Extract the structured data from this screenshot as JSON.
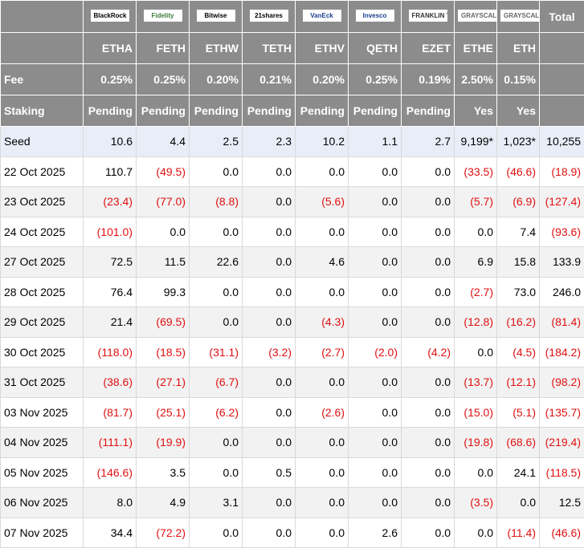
{
  "header": {
    "logos": [
      "BlackRock",
      "Fidelity",
      "Bitwise",
      "21shares",
      "VanEck",
      "Invesco",
      "FRANKLIN TEMPLETON",
      "GRAYSCALE",
      "GRAYSCALE"
    ],
    "total": "Total",
    "tickers": [
      "ETHA",
      "FETH",
      "ETHW",
      "TETH",
      "ETHV",
      "QETH",
      "EZET",
      "ETHE",
      "ETH"
    ]
  },
  "fee": {
    "label": "Fee",
    "values": [
      "0.25%",
      "0.25%",
      "0.20%",
      "0.21%",
      "0.20%",
      "0.25%",
      "0.19%",
      "2.50%",
      "0.15%"
    ]
  },
  "staking": {
    "label": "Staking",
    "values": [
      "Pending",
      "Pending",
      "Pending",
      "Pending",
      "Pending",
      "Pending",
      "Pending",
      "Yes",
      "Yes"
    ]
  },
  "rows": [
    {
      "date": "Seed",
      "values": [
        "10.6",
        "4.4",
        "2.5",
        "2.3",
        "10.2",
        "1.1",
        "2.7",
        "9,199*",
        "1,023*",
        "10,255"
      ]
    },
    {
      "date": "22 Oct 2025",
      "values": [
        "110.7",
        "(49.5)",
        "0.0",
        "0.0",
        "0.0",
        "0.0",
        "0.0",
        "(33.5)",
        "(46.6)",
        "(18.9)"
      ]
    },
    {
      "date": "23 Oct 2025",
      "values": [
        "(23.4)",
        "(77.0)",
        "(8.8)",
        "0.0",
        "(5.6)",
        "0.0",
        "0.0",
        "(5.7)",
        "(6.9)",
        "(127.4)"
      ]
    },
    {
      "date": "24 Oct 2025",
      "values": [
        "(101.0)",
        "0.0",
        "0.0",
        "0.0",
        "0.0",
        "0.0",
        "0.0",
        "0.0",
        "7.4",
        "(93.6)"
      ]
    },
    {
      "date": "27 Oct 2025",
      "values": [
        "72.5",
        "11.5",
        "22.6",
        "0.0",
        "4.6",
        "0.0",
        "0.0",
        "6.9",
        "15.8",
        "133.9"
      ]
    },
    {
      "date": "28 Oct 2025",
      "values": [
        "76.4",
        "99.3",
        "0.0",
        "0.0",
        "0.0",
        "0.0",
        "0.0",
        "(2.7)",
        "73.0",
        "246.0"
      ]
    },
    {
      "date": "29 Oct 2025",
      "values": [
        "21.4",
        "(69.5)",
        "0.0",
        "0.0",
        "(4.3)",
        "0.0",
        "0.0",
        "(12.8)",
        "(16.2)",
        "(81.4)"
      ]
    },
    {
      "date": "30 Oct 2025",
      "values": [
        "(118.0)",
        "(18.5)",
        "(31.1)",
        "(3.2)",
        "(2.7)",
        "(2.0)",
        "(4.2)",
        "0.0",
        "(4.5)",
        "(184.2)"
      ]
    },
    {
      "date": "31 Oct 2025",
      "values": [
        "(38.6)",
        "(27.1)",
        "(6.7)",
        "0.0",
        "0.0",
        "0.0",
        "0.0",
        "(13.7)",
        "(12.1)",
        "(98.2)"
      ]
    },
    {
      "date": "03 Nov 2025",
      "values": [
        "(81.7)",
        "(25.1)",
        "(6.2)",
        "0.0",
        "(2.6)",
        "0.0",
        "0.0",
        "(15.0)",
        "(5.1)",
        "(135.7)"
      ]
    },
    {
      "date": "04 Nov 2025",
      "values": [
        "(111.1)",
        "(19.9)",
        "0.0",
        "0.0",
        "0.0",
        "0.0",
        "0.0",
        "(19.8)",
        "(68.6)",
        "(219.4)"
      ]
    },
    {
      "date": "05 Nov 2025",
      "values": [
        "(146.6)",
        "3.5",
        "0.0",
        "0.5",
        "0.0",
        "0.0",
        "0.0",
        "0.0",
        "24.1",
        "(118.5)"
      ]
    },
    {
      "date": "06 Nov 2025",
      "values": [
        "8.0",
        "4.9",
        "3.1",
        "0.0",
        "0.0",
        "0.0",
        "0.0",
        "(3.5)",
        "0.0",
        "12.5"
      ]
    },
    {
      "date": "07 Nov 2025",
      "values": [
        "34.4",
        "(72.2)",
        "0.0",
        "0.0",
        "0.0",
        "2.6",
        "0.0",
        "0.0",
        "(11.4)",
        "(46.6)"
      ]
    }
  ]
}
